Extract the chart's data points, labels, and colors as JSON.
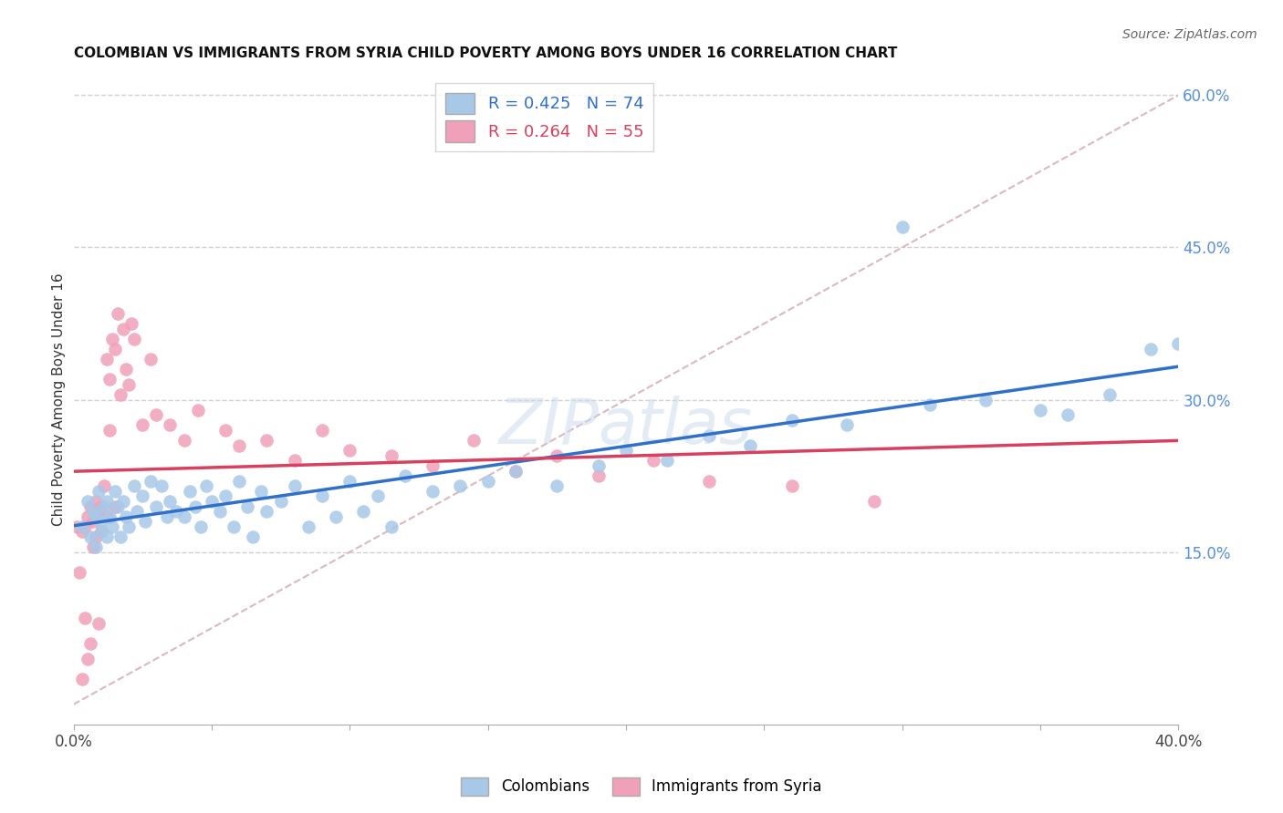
{
  "title": "COLOMBIAN VS IMMIGRANTS FROM SYRIA CHILD POVERTY AMONG BOYS UNDER 16 CORRELATION CHART",
  "source": "Source: ZipAtlas.com",
  "ylabel": "Child Poverty Among Boys Under 16",
  "xlim": [
    0.0,
    0.4
  ],
  "ylim": [
    -0.02,
    0.62
  ],
  "ytick_positions_right": [
    0.6,
    0.45,
    0.3,
    0.15
  ],
  "ytick_labels_right": [
    "60.0%",
    "45.0%",
    "30.0%",
    "15.0%"
  ],
  "colombians_color": "#a8c8e8",
  "syria_color": "#f0a0b8",
  "colombians_line_color": "#3070c8",
  "syria_line_color": "#d84060",
  "diagonal_color": "#d8b0b8",
  "R_colombians": 0.425,
  "N_colombians": 74,
  "R_syria": 0.264,
  "N_syria": 55,
  "legend_label1": "Colombians",
  "legend_label2": "Immigrants from Syria",
  "background_color": "#ffffff",
  "grid_color": "#d0d0d0",
  "colombians_x": [
    0.003,
    0.005,
    0.006,
    0.007,
    0.008,
    0.008,
    0.009,
    0.01,
    0.01,
    0.011,
    0.012,
    0.012,
    0.013,
    0.014,
    0.015,
    0.016,
    0.017,
    0.018,
    0.019,
    0.02,
    0.022,
    0.023,
    0.025,
    0.026,
    0.028,
    0.03,
    0.032,
    0.034,
    0.035,
    0.037,
    0.04,
    0.042,
    0.044,
    0.046,
    0.048,
    0.05,
    0.053,
    0.055,
    0.058,
    0.06,
    0.063,
    0.065,
    0.068,
    0.07,
    0.075,
    0.08,
    0.085,
    0.09,
    0.095,
    0.1,
    0.105,
    0.11,
    0.115,
    0.12,
    0.13,
    0.14,
    0.15,
    0.16,
    0.175,
    0.19,
    0.2,
    0.215,
    0.23,
    0.245,
    0.26,
    0.28,
    0.3,
    0.31,
    0.33,
    0.35,
    0.36,
    0.375,
    0.39,
    0.4
  ],
  "colombians_y": [
    0.175,
    0.2,
    0.165,
    0.19,
    0.185,
    0.155,
    0.21,
    0.18,
    0.17,
    0.195,
    0.2,
    0.165,
    0.185,
    0.175,
    0.21,
    0.195,
    0.165,
    0.2,
    0.185,
    0.175,
    0.215,
    0.19,
    0.205,
    0.18,
    0.22,
    0.195,
    0.215,
    0.185,
    0.2,
    0.19,
    0.185,
    0.21,
    0.195,
    0.175,
    0.215,
    0.2,
    0.19,
    0.205,
    0.175,
    0.22,
    0.195,
    0.165,
    0.21,
    0.19,
    0.2,
    0.215,
    0.175,
    0.205,
    0.185,
    0.22,
    0.19,
    0.205,
    0.175,
    0.225,
    0.21,
    0.215,
    0.22,
    0.23,
    0.215,
    0.235,
    0.25,
    0.24,
    0.265,
    0.255,
    0.28,
    0.275,
    0.47,
    0.295,
    0.3,
    0.29,
    0.285,
    0.305,
    0.35,
    0.355
  ],
  "syria_x": [
    0.001,
    0.002,
    0.003,
    0.003,
    0.004,
    0.004,
    0.005,
    0.005,
    0.006,
    0.006,
    0.007,
    0.007,
    0.008,
    0.008,
    0.009,
    0.009,
    0.01,
    0.01,
    0.011,
    0.012,
    0.012,
    0.013,
    0.013,
    0.014,
    0.015,
    0.015,
    0.016,
    0.017,
    0.018,
    0.019,
    0.02,
    0.021,
    0.022,
    0.025,
    0.028,
    0.03,
    0.035,
    0.04,
    0.045,
    0.055,
    0.06,
    0.07,
    0.08,
    0.09,
    0.1,
    0.115,
    0.13,
    0.145,
    0.16,
    0.175,
    0.19,
    0.21,
    0.23,
    0.26,
    0.29
  ],
  "syria_y": [
    0.175,
    0.13,
    0.17,
    0.025,
    0.175,
    0.085,
    0.185,
    0.045,
    0.195,
    0.06,
    0.18,
    0.155,
    0.2,
    0.165,
    0.19,
    0.08,
    0.195,
    0.17,
    0.215,
    0.185,
    0.34,
    0.32,
    0.27,
    0.36,
    0.35,
    0.195,
    0.385,
    0.305,
    0.37,
    0.33,
    0.315,
    0.375,
    0.36,
    0.275,
    0.34,
    0.285,
    0.275,
    0.26,
    0.29,
    0.27,
    0.255,
    0.26,
    0.24,
    0.27,
    0.25,
    0.245,
    0.235,
    0.26,
    0.23,
    0.245,
    0.225,
    0.24,
    0.22,
    0.215,
    0.2
  ]
}
